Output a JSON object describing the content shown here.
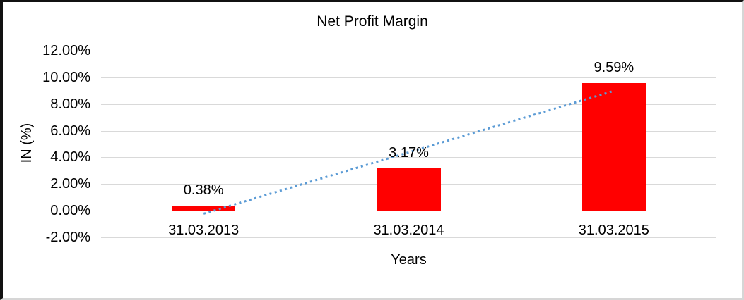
{
  "chart_data": {
    "type": "bar",
    "title": "Net Profit Margin",
    "xlabel": "Years",
    "ylabel": "IN (%)",
    "categories": [
      "31.03.2013",
      "31.03.2014",
      "31.03.2015"
    ],
    "series": [
      {
        "name": "Net Profit Margin",
        "color": "#ff0000",
        "values": [
          0.38,
          3.17,
          9.59
        ],
        "data_labels": [
          "0.38%",
          "3.17%",
          "9.59%"
        ]
      }
    ],
    "ylim": [
      -2,
      12
    ],
    "yticks": [
      {
        "value": 12,
        "label": "12.00%"
      },
      {
        "value": 10,
        "label": "10.00%"
      },
      {
        "value": 8,
        "label": "8.00%"
      },
      {
        "value": 6,
        "label": "6.00%"
      },
      {
        "value": 4,
        "label": "4.00%"
      },
      {
        "value": 2,
        "label": "2.00%"
      },
      {
        "value": 0,
        "label": "0.00%"
      },
      {
        "value": -2,
        "label": "-2.00%"
      }
    ],
    "grid": true,
    "gridline_color": "#d9d9d9",
    "trendline": {
      "type": "linear",
      "style": "dotted",
      "color": "#5b9bd5"
    },
    "legend": "none",
    "background": "#ffffff"
  }
}
